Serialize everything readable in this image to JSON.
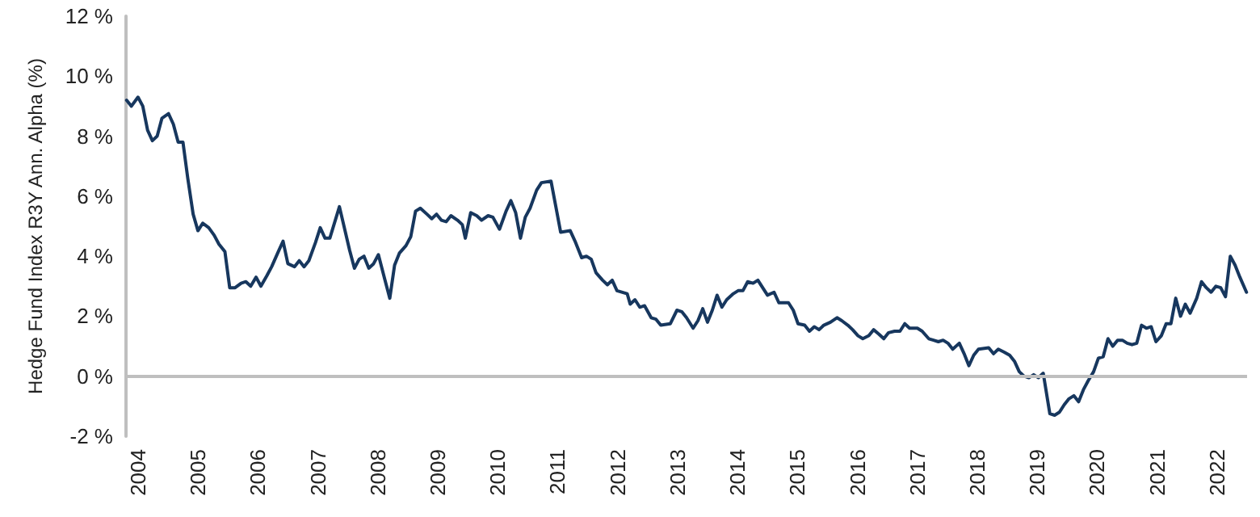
{
  "chart_data": {
    "type": "line",
    "ylabel": "Hedge Fund Index R3Y Ann. Alpha (%)",
    "x": [
      2003.81,
      2003.89,
      2004.0,
      2004.08,
      2004.16,
      2004.24,
      2004.32,
      2004.4,
      2004.51,
      2004.59,
      2004.67,
      2004.75,
      2004.83,
      2004.92,
      2005.0,
      2005.08,
      2005.18,
      2005.27,
      2005.35,
      2005.45,
      2005.53,
      2005.62,
      2005.72,
      2005.8,
      2005.88,
      2005.97,
      2006.05,
      2006.15,
      2006.23,
      2006.34,
      2006.42,
      2006.5,
      2006.61,
      2006.69,
      2006.77,
      2006.85,
      2006.96,
      2007.04,
      2007.12,
      2007.2,
      2007.36,
      2007.53,
      2007.61,
      2007.69,
      2007.77,
      2007.85,
      2007.93,
      2008.01,
      2008.12,
      2008.2,
      2008.28,
      2008.36,
      2008.47,
      2008.55,
      2008.63,
      2008.71,
      2008.82,
      2008.9,
      2008.98,
      2009.06,
      2009.14,
      2009.22,
      2009.33,
      2009.41,
      2009.46,
      2009.55,
      2009.65,
      2009.73,
      2009.84,
      2009.92,
      2010.03,
      2010.14,
      2010.22,
      2010.3,
      2010.38,
      2010.46,
      2010.54,
      2010.65,
      2010.73,
      2010.89,
      2011.05,
      2011.21,
      2011.29,
      2011.4,
      2011.48,
      2011.56,
      2011.64,
      2011.75,
      2011.83,
      2011.91,
      2011.99,
      2012.16,
      2012.21,
      2012.29,
      2012.37,
      2012.45,
      2012.56,
      2012.64,
      2012.72,
      2012.88,
      2012.99,
      2013.07,
      2013.15,
      2013.26,
      2013.34,
      2013.42,
      2013.5,
      2013.58,
      2013.66,
      2013.74,
      2013.82,
      2013.93,
      2014.01,
      2014.09,
      2014.17,
      2014.26,
      2014.34,
      2014.42,
      2014.5,
      2014.61,
      2014.69,
      2014.85,
      2014.93,
      2015.01,
      2015.12,
      2015.2,
      2015.28,
      2015.36,
      2015.44,
      2015.55,
      2015.66,
      2015.74,
      2015.84,
      2015.92,
      2016.01,
      2016.09,
      2016.19,
      2016.27,
      2016.36,
      2016.44,
      2016.52,
      2016.62,
      2016.71,
      2016.79,
      2016.87,
      2017.0,
      2017.08,
      2017.19,
      2017.27,
      2017.35,
      2017.43,
      2017.51,
      2017.59,
      2017.7,
      2017.78,
      2017.86,
      2017.94,
      2018.02,
      2018.19,
      2018.27,
      2018.35,
      2018.45,
      2018.54,
      2018.62,
      2018.7,
      2018.78,
      2018.86,
      2018.94,
      2019.02,
      2019.1,
      2019.21,
      2019.29,
      2019.37,
      2019.45,
      2019.53,
      2019.61,
      2019.69,
      2019.77,
      2019.85,
      2019.94,
      2020.02,
      2020.1,
      2020.18,
      2020.26,
      2020.34,
      2020.42,
      2020.5,
      2020.58,
      2020.66,
      2020.74,
      2020.82,
      2020.9,
      2020.98,
      2021.07,
      2021.15,
      2021.23,
      2021.31,
      2021.39,
      2021.47,
      2021.55,
      2021.66,
      2021.74,
      2021.82,
      2021.9,
      2021.98,
      2022.06,
      2022.14,
      2022.22,
      2022.3,
      2022.38,
      2022.49
    ],
    "series": [
      {
        "color": "#17375e",
        "values": [
          9.2,
          9.0,
          9.3,
          9.0,
          8.2,
          7.85,
          8.0,
          8.6,
          8.75,
          8.4,
          7.8,
          7.8,
          6.6,
          5.4,
          4.85,
          5.1,
          4.95,
          4.7,
          4.4,
          4.15,
          2.95,
          2.95,
          3.1,
          3.15,
          3.0,
          3.3,
          3.0,
          3.35,
          3.65,
          4.15,
          4.5,
          3.75,
          3.65,
          3.85,
          3.65,
          3.85,
          4.45,
          4.95,
          4.6,
          4.6,
          5.65,
          4.2,
          3.6,
          3.9,
          4.0,
          3.6,
          3.75,
          4.05,
          3.2,
          2.6,
          3.7,
          4.1,
          4.35,
          4.65,
          5.5,
          5.6,
          5.4,
          5.25,
          5.4,
          5.2,
          5.15,
          5.35,
          5.2,
          5.05,
          4.6,
          5.45,
          5.35,
          5.2,
          5.35,
          5.3,
          4.9,
          5.5,
          5.85,
          5.45,
          4.6,
          5.3,
          5.6,
          6.2,
          6.45,
          6.5,
          4.8,
          4.85,
          4.5,
          3.95,
          4.0,
          3.9,
          3.45,
          3.2,
          3.05,
          3.2,
          2.85,
          2.75,
          2.4,
          2.55,
          2.3,
          2.35,
          1.95,
          1.9,
          1.7,
          1.75,
          2.2,
          2.15,
          1.95,
          1.6,
          1.85,
          2.25,
          1.8,
          2.2,
          2.7,
          2.3,
          2.55,
          2.75,
          2.85,
          2.85,
          3.15,
          3.1,
          3.2,
          2.95,
          2.7,
          2.8,
          2.45,
          2.45,
          2.2,
          1.75,
          1.7,
          1.5,
          1.65,
          1.55,
          1.7,
          1.8,
          1.95,
          1.85,
          1.7,
          1.55,
          1.35,
          1.25,
          1.35,
          1.55,
          1.4,
          1.25,
          1.45,
          1.5,
          1.5,
          1.75,
          1.6,
          1.6,
          1.5,
          1.25,
          1.2,
          1.15,
          1.2,
          1.1,
          0.9,
          1.1,
          0.75,
          0.35,
          0.7,
          0.9,
          0.95,
          0.75,
          0.9,
          0.8,
          0.7,
          0.5,
          0.15,
          0.0,
          -0.05,
          0.05,
          -0.05,
          0.1,
          -1.25,
          -1.3,
          -1.2,
          -0.95,
          -0.75,
          -0.65,
          -0.85,
          -0.45,
          -0.15,
          0.15,
          0.6,
          0.65,
          1.25,
          1.0,
          1.2,
          1.2,
          1.1,
          1.05,
          1.1,
          1.7,
          1.6,
          1.65,
          1.15,
          1.35,
          1.75,
          1.75,
          2.6,
          2.0,
          2.4,
          2.1,
          2.6,
          3.15,
          2.95,
          2.8,
          3.0,
          2.95,
          2.65,
          4.0,
          3.7,
          3.3,
          2.8
        ]
      }
    ],
    "xlim": [
      2003.8,
      2022.5
    ],
    "xticks": [
      2004,
      2005,
      2006,
      2007,
      2008,
      2009,
      2010,
      2011,
      2012,
      2013,
      2014,
      2015,
      2016,
      2017,
      2018,
      2019,
      2020,
      2021,
      2022
    ],
    "ylim": [
      -2,
      12
    ],
    "yticks": [
      {
        "value": -2,
        "label": "-2 %"
      },
      {
        "value": 0,
        "label": "0 %"
      },
      {
        "value": 2,
        "label": "2 %"
      },
      {
        "value": 4,
        "label": "4 %"
      },
      {
        "value": 6,
        "label": "6 %"
      },
      {
        "value": 8,
        "label": "8 %"
      },
      {
        "value": 10,
        "label": "10 %"
      },
      {
        "value": 12,
        "label": "12 %"
      }
    ],
    "ref_lines": [
      {
        "axis": "y",
        "value": 0,
        "color": "#bfbfbf"
      }
    ],
    "grid": false,
    "marker": "none",
    "line_style": "solid"
  }
}
